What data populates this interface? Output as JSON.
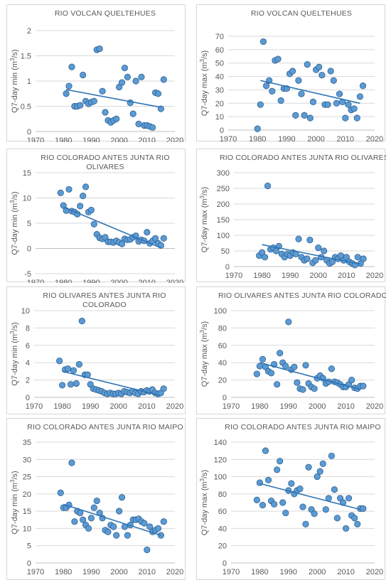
{
  "chart_data": [
    {
      "type": "scatter",
      "title_lines": [
        "RIO VOLCAN QUELTEHUES"
      ],
      "ylabel": "Q7-day min (m3/s)",
      "ylabel_main": "Q7-day min (m",
      "ylabel_sup": "3",
      "ylabel_tail": "/s)",
      "xlim": [
        1970,
        2020
      ],
      "ylim": [
        0,
        2
      ],
      "yticks": [
        0,
        0.5,
        1,
        1.5,
        2
      ],
      "ytick_labels": [
        "0",
        "0.5",
        "1",
        "1.5",
        "2"
      ],
      "xticks": [
        1970,
        1980,
        1990,
        2000,
        2010,
        2020
      ],
      "grid": true,
      "trendline": [
        [
          1981,
          0.83
        ],
        [
          2015,
          0.48
        ]
      ],
      "x": [
        1981,
        1982,
        1983,
        1984,
        1985,
        1986,
        1987,
        1988,
        1989,
        1990,
        1991,
        1992,
        1993,
        1994,
        1995,
        1996,
        1997,
        1998,
        1999,
        2000,
        2001,
        2002,
        2003,
        2004,
        2005,
        2006,
        2007,
        2008,
        2009,
        2010,
        2011,
        2012,
        2013,
        2014,
        2015,
        2016
      ],
      "y": [
        0.75,
        0.9,
        1.28,
        0.5,
        0.5,
        0.52,
        1.12,
        0.6,
        0.55,
        0.58,
        0.6,
        1.62,
        1.64,
        0.8,
        0.38,
        0.22,
        0.18,
        0.22,
        0.25,
        0.88,
        0.97,
        1.26,
        1.08,
        0.57,
        0.35,
        1.0,
        0.15,
        1.08,
        0.12,
        0.12,
        0.1,
        0.08,
        0.77,
        0.75,
        0.45,
        1.03
      ]
    },
    {
      "type": "scatter",
      "title_lines": [
        "RIO VOLCAN QUELTEHUES"
      ],
      "ylabel": "Q7-day max (m3/s)",
      "ylabel_main": "Q7-day max (m",
      "ylabel_sup": "3",
      "ylabel_tail": "/s)",
      "xlim": [
        1970,
        2020
      ],
      "ylim": [
        0,
        70
      ],
      "yticks": [
        0,
        10,
        20,
        30,
        40,
        50,
        60,
        70
      ],
      "ytick_labels": [
        "0",
        "10",
        "20",
        "30",
        "40",
        "50",
        "60",
        "70"
      ],
      "xticks": [
        1970,
        1980,
        1990,
        2000,
        2010,
        2020
      ],
      "grid": true,
      "trendline": [
        [
          1981,
          37
        ],
        [
          2015,
          20
        ]
      ],
      "x": [
        1980,
        1981,
        1982,
        1983,
        1984,
        1985,
        1986,
        1987,
        1988,
        1989,
        1990,
        1991,
        1992,
        1993,
        1994,
        1995,
        1996,
        1997,
        1998,
        1999,
        2000,
        2001,
        2002,
        2003,
        2004,
        2005,
        2006,
        2007,
        2008,
        2009,
        2010,
        2011,
        2012,
        2013,
        2014,
        2015,
        2016
      ],
      "y": [
        1,
        19,
        66,
        33,
        37,
        29,
        52,
        53,
        22,
        31,
        31,
        42,
        44,
        11,
        37,
        27,
        11,
        49,
        9,
        21,
        45,
        47,
        41,
        19,
        19,
        44,
        37,
        20,
        27,
        21,
        9,
        19,
        15,
        16,
        9,
        25,
        33
      ]
    },
    {
      "type": "scatter",
      "title_lines": [
        "RIO COLORADO ANTES JUNTA RIO",
        "OLIVARES"
      ],
      "ylabel": "Q7-day min (m3/s)",
      "ylabel_main": "Q7-day min (m",
      "ylabel_sup": "3",
      "ylabel_tail": "/s)",
      "xlim": [
        1970,
        2020
      ],
      "ylim": [
        -5,
        15
      ],
      "yticks": [
        -5,
        0,
        5,
        10,
        15
      ],
      "ytick_labels": [
        "-5",
        "0",
        "5",
        "10",
        "15"
      ],
      "xticks": [
        1970,
        1980,
        1990,
        2000,
        2010,
        2020
      ],
      "grid": true,
      "trendline": [
        [
          1980,
          8.2
        ],
        [
          2015,
          0.1
        ]
      ],
      "x": [
        1979,
        1980,
        1981,
        1982,
        1983,
        1984,
        1985,
        1986,
        1987,
        1988,
        1989,
        1990,
        1991,
        1992,
        1993,
        1994,
        1995,
        1996,
        1997,
        1998,
        1999,
        2000,
        2001,
        2002,
        2003,
        2004,
        2005,
        2006,
        2007,
        2008,
        2009,
        2010,
        2011,
        2012,
        2013,
        2014,
        2015,
        2016
      ],
      "y": [
        11,
        8.5,
        7.5,
        11.7,
        7.4,
        7.2,
        6.8,
        8.4,
        10.4,
        12.2,
        7.2,
        7.6,
        4.8,
        2.8,
        2.1,
        1.9,
        2.2,
        1.3,
        1.3,
        1.2,
        1.5,
        1.2,
        0.9,
        1.9,
        1.7,
        1.8,
        2.2,
        2.5,
        1.4,
        1.7,
        1.5,
        3.2,
        1.0,
        1.5,
        2.0,
        1.0,
        0.6,
        2.0
      ]
    },
    {
      "type": "scatter",
      "title_lines": [
        "RIO COLORADO ANTES JUNTA RIO OLIVARES"
      ],
      "ylabel": "Q7-day max (m3/s)",
      "ylabel_main": "Q7-day max (m",
      "ylabel_sup": "3",
      "ylabel_tail": "/s)",
      "xlim": [
        1970,
        2020
      ],
      "ylim": [
        0,
        300
      ],
      "yticks": [
        0,
        50,
        100,
        150,
        200,
        250,
        300
      ],
      "ytick_labels": [
        "0",
        "50",
        "100",
        "150",
        "200",
        "250",
        "300"
      ],
      "xticks": [
        1970,
        1980,
        1990,
        2000,
        2010,
        2020
      ],
      "grid": true,
      "trendline": [
        [
          1980,
          70
        ],
        [
          2015,
          8
        ]
      ],
      "x": [
        1979,
        1980,
        1981,
        1982,
        1983,
        1984,
        1985,
        1986,
        1987,
        1988,
        1989,
        1990,
        1991,
        1992,
        1993,
        1994,
        1995,
        1996,
        1997,
        1998,
        1999,
        2000,
        2001,
        2002,
        2003,
        2004,
        2005,
        2006,
        2007,
        2008,
        2009,
        2010,
        2011,
        2012,
        2013,
        2014,
        2015,
        2016
      ],
      "y": [
        35,
        45,
        30,
        258,
        55,
        60,
        50,
        65,
        40,
        30,
        40,
        35,
        45,
        40,
        88,
        30,
        20,
        25,
        85,
        12,
        20,
        60,
        30,
        50,
        20,
        10,
        15,
        30,
        25,
        35,
        20,
        30,
        15,
        10,
        5,
        30,
        10,
        25
      ]
    },
    {
      "type": "scatter",
      "title_lines": [
        "RIO OLIVARES ANTES JUNTA RIO",
        "COLORADO"
      ],
      "ylabel": "Q7-day min (m3/s)",
      "ylabel_main": "Q7-day min (m",
      "ylabel_sup": "3",
      "ylabel_tail": "/s)",
      "xlim": [
        1970,
        2020
      ],
      "ylim": [
        0,
        10
      ],
      "yticks": [
        0,
        2,
        4,
        6,
        8,
        10
      ],
      "ytick_labels": [
        "0",
        "2",
        "4",
        "6",
        "8",
        "10"
      ],
      "xticks": [
        1970,
        1980,
        1990,
        2000,
        2010,
        2020
      ],
      "grid": true,
      "trendline": [
        [
          1980,
          3.0
        ],
        [
          2015,
          0.2
        ]
      ],
      "x": [
        1979,
        1980,
        1981,
        1982,
        1983,
        1984,
        1985,
        1986,
        1987,
        1988,
        1989,
        1990,
        1991,
        1992,
        1993,
        1994,
        1995,
        1996,
        1997,
        1998,
        1999,
        2000,
        2001,
        2002,
        2003,
        2004,
        2005,
        2006,
        2007,
        2008,
        2009,
        2010,
        2011,
        2012,
        2013,
        2014,
        2015,
        2016
      ],
      "y": [
        4.2,
        1.4,
        3.2,
        3.3,
        1.5,
        3.1,
        1.6,
        3.8,
        8.8,
        2.6,
        2.6,
        1.5,
        1.0,
        0.9,
        0.8,
        0.7,
        0.5,
        0.4,
        0.5,
        0.4,
        0.4,
        0.5,
        0.4,
        0.7,
        0.6,
        0.5,
        0.7,
        0.5,
        0.4,
        0.7,
        0.6,
        0.8,
        0.7,
        0.9,
        0.5,
        0.4,
        0.5,
        1.0
      ]
    },
    {
      "type": "scatter",
      "title_lines": [
        "RIO OLIVARES ANTES JUNTA RIO COLORADO"
      ],
      "ylabel": "Q7-day max (m3/s)",
      "ylabel_main": "Q7-day max (m",
      "ylabel_sup": "3",
      "ylabel_tail": "/s)",
      "xlim": [
        1970,
        2020
      ],
      "ylim": [
        0,
        100
      ],
      "yticks": [
        0,
        20,
        40,
        60,
        80,
        100
      ],
      "ytick_labels": [
        "0",
        "20",
        "40",
        "60",
        "80",
        "100"
      ],
      "xticks": [
        1970,
        1980,
        1990,
        2000,
        2010,
        2020
      ],
      "grid": true,
      "trendline": [
        [
          1980,
          40
        ],
        [
          2015,
          9
        ]
      ],
      "x": [
        1979,
        1980,
        1981,
        1982,
        1983,
        1984,
        1985,
        1986,
        1987,
        1988,
        1989,
        1990,
        1991,
        1992,
        1993,
        1994,
        1995,
        1996,
        1997,
        1998,
        1999,
        2000,
        2001,
        2002,
        2003,
        2004,
        2005,
        2006,
        2007,
        2008,
        2009,
        2010,
        2011,
        2012,
        2013,
        2014,
        2015,
        2016
      ],
      "y": [
        27,
        36,
        44,
        35,
        30,
        28,
        38,
        15,
        51,
        40,
        36,
        87,
        32,
        35,
        17,
        10,
        9,
        37,
        16,
        12,
        10,
        22,
        25,
        22,
        16,
        18,
        33,
        18,
        17,
        15,
        12,
        12,
        15,
        20,
        11,
        10,
        13,
        13
      ]
    },
    {
      "type": "scatter",
      "title_lines": [
        "RIO COLORADO ANTES JUNTA RIO MAIPO"
      ],
      "ylabel": "Q7-day min (m3/s)",
      "ylabel_main": "Q7-day min (m",
      "ylabel_sup": "3",
      "ylabel_tail": "/s)",
      "xlim": [
        1970,
        2020
      ],
      "ylim": [
        0,
        35
      ],
      "yticks": [
        0,
        5,
        10,
        15,
        20,
        25,
        30,
        35
      ],
      "ytick_labels": [
        "0",
        "5",
        "10",
        "15",
        "20",
        "25",
        "30",
        "35"
      ],
      "xticks": [
        1970,
        1980,
        1990,
        2000,
        2010,
        2020
      ],
      "grid": true,
      "trendline": [
        [
          1980,
          17
        ],
        [
          2015,
          8
        ]
      ],
      "x": [
        1979,
        1980,
        1981,
        1982,
        1983,
        1984,
        1985,
        1986,
        1987,
        1988,
        1989,
        1990,
        1991,
        1992,
        1993,
        1994,
        1995,
        1996,
        1997,
        1998,
        1999,
        2000,
        2001,
        2002,
        2003,
        2004,
        2005,
        2006,
        2007,
        2008,
        2009,
        2010,
        2011,
        2012,
        2013,
        2014,
        2015,
        2016
      ],
      "y": [
        20.3,
        16,
        16,
        16.8,
        29,
        12,
        15,
        14.5,
        12.5,
        11,
        10,
        13,
        16,
        18,
        14.5,
        13,
        9.5,
        9,
        11,
        10.5,
        8,
        15,
        19,
        10.5,
        8,
        11,
        12.5,
        12.5,
        12.8,
        12,
        11.5,
        3.8,
        10.5,
        9,
        9.5,
        10,
        8,
        12
      ]
    },
    {
      "type": "scatter",
      "title_lines": [
        "RIO COLORADO ANTES JUNTA RIO MAIPO"
      ],
      "ylabel": "Q7-day max (m3/s)",
      "ylabel_main": "Q7-day max (m",
      "ylabel_sup": "3",
      "ylabel_tail": "/s)",
      "xlim": [
        1970,
        2020
      ],
      "ylim": [
        0,
        140
      ],
      "yticks": [
        0,
        20,
        40,
        60,
        80,
        100,
        120,
        140
      ],
      "ytick_labels": [
        "0",
        "20",
        "40",
        "60",
        "80",
        "100",
        "120",
        "140"
      ],
      "xticks": [
        1970,
        1980,
        1990,
        2000,
        2010,
        2020
      ],
      "grid": true,
      "trendline": [
        [
          1980,
          92
        ],
        [
          2015,
          62
        ]
      ],
      "x": [
        1979,
        1980,
        1981,
        1982,
        1983,
        1984,
        1985,
        1986,
        1987,
        1988,
        1989,
        1990,
        1991,
        1992,
        1993,
        1994,
        1995,
        1996,
        1997,
        1998,
        1999,
        2000,
        2001,
        2002,
        2003,
        2004,
        2005,
        2006,
        2007,
        2008,
        2009,
        2010,
        2011,
        2012,
        2013,
        2014,
        2015,
        2016
      ],
      "y": [
        73,
        93,
        67,
        130,
        96,
        72,
        68,
        108,
        118,
        70,
        58,
        84,
        92,
        80,
        84,
        86,
        65,
        45,
        111,
        62,
        57,
        100,
        106,
        115,
        62,
        75,
        124,
        85,
        52,
        75,
        70,
        40,
        75,
        55,
        52,
        45,
        63,
        63
      ]
    }
  ]
}
